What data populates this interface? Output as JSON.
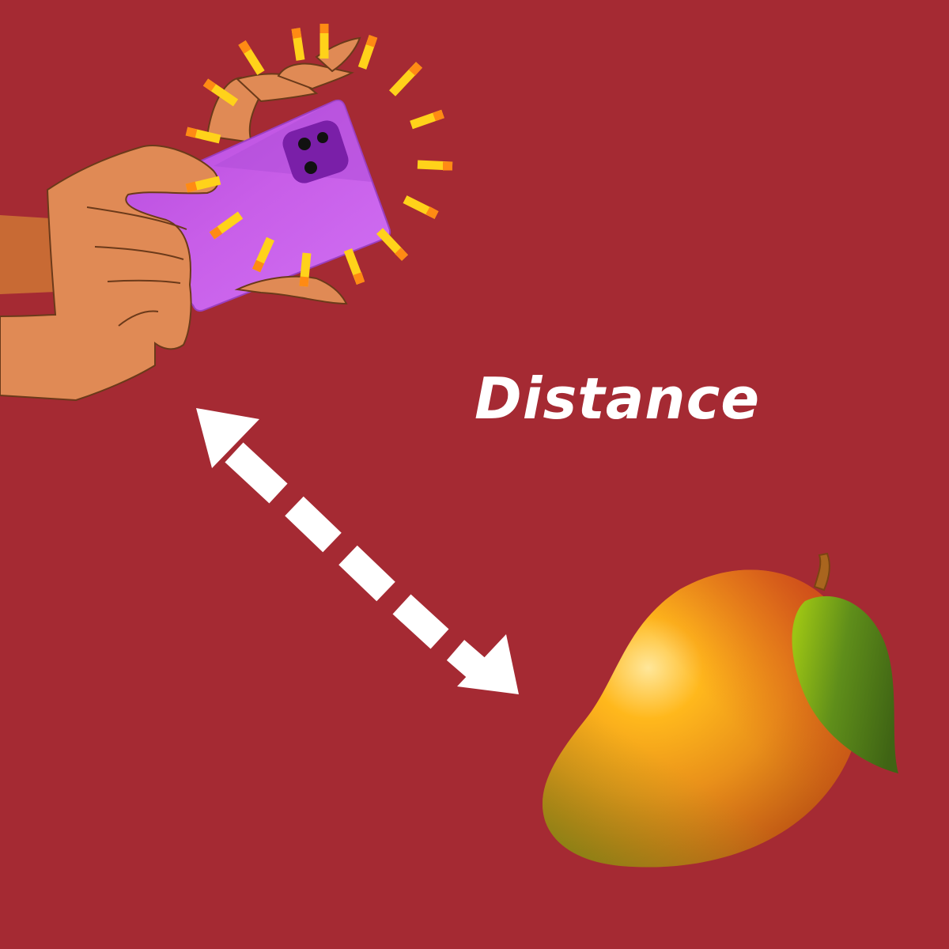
{
  "label": {
    "text": "Distance"
  },
  "icons": {
    "phone": "hand-holding-phone-icon",
    "arrow": "double-headed-dashed-arrow-icon",
    "mango": "mango-icon"
  },
  "colors": {
    "background": "#a52a33",
    "text": "#ffffff",
    "phone": "#c45de6",
    "camera": "#7a1fa8",
    "skin": "#e08a55",
    "flash": "#ffd21a"
  }
}
